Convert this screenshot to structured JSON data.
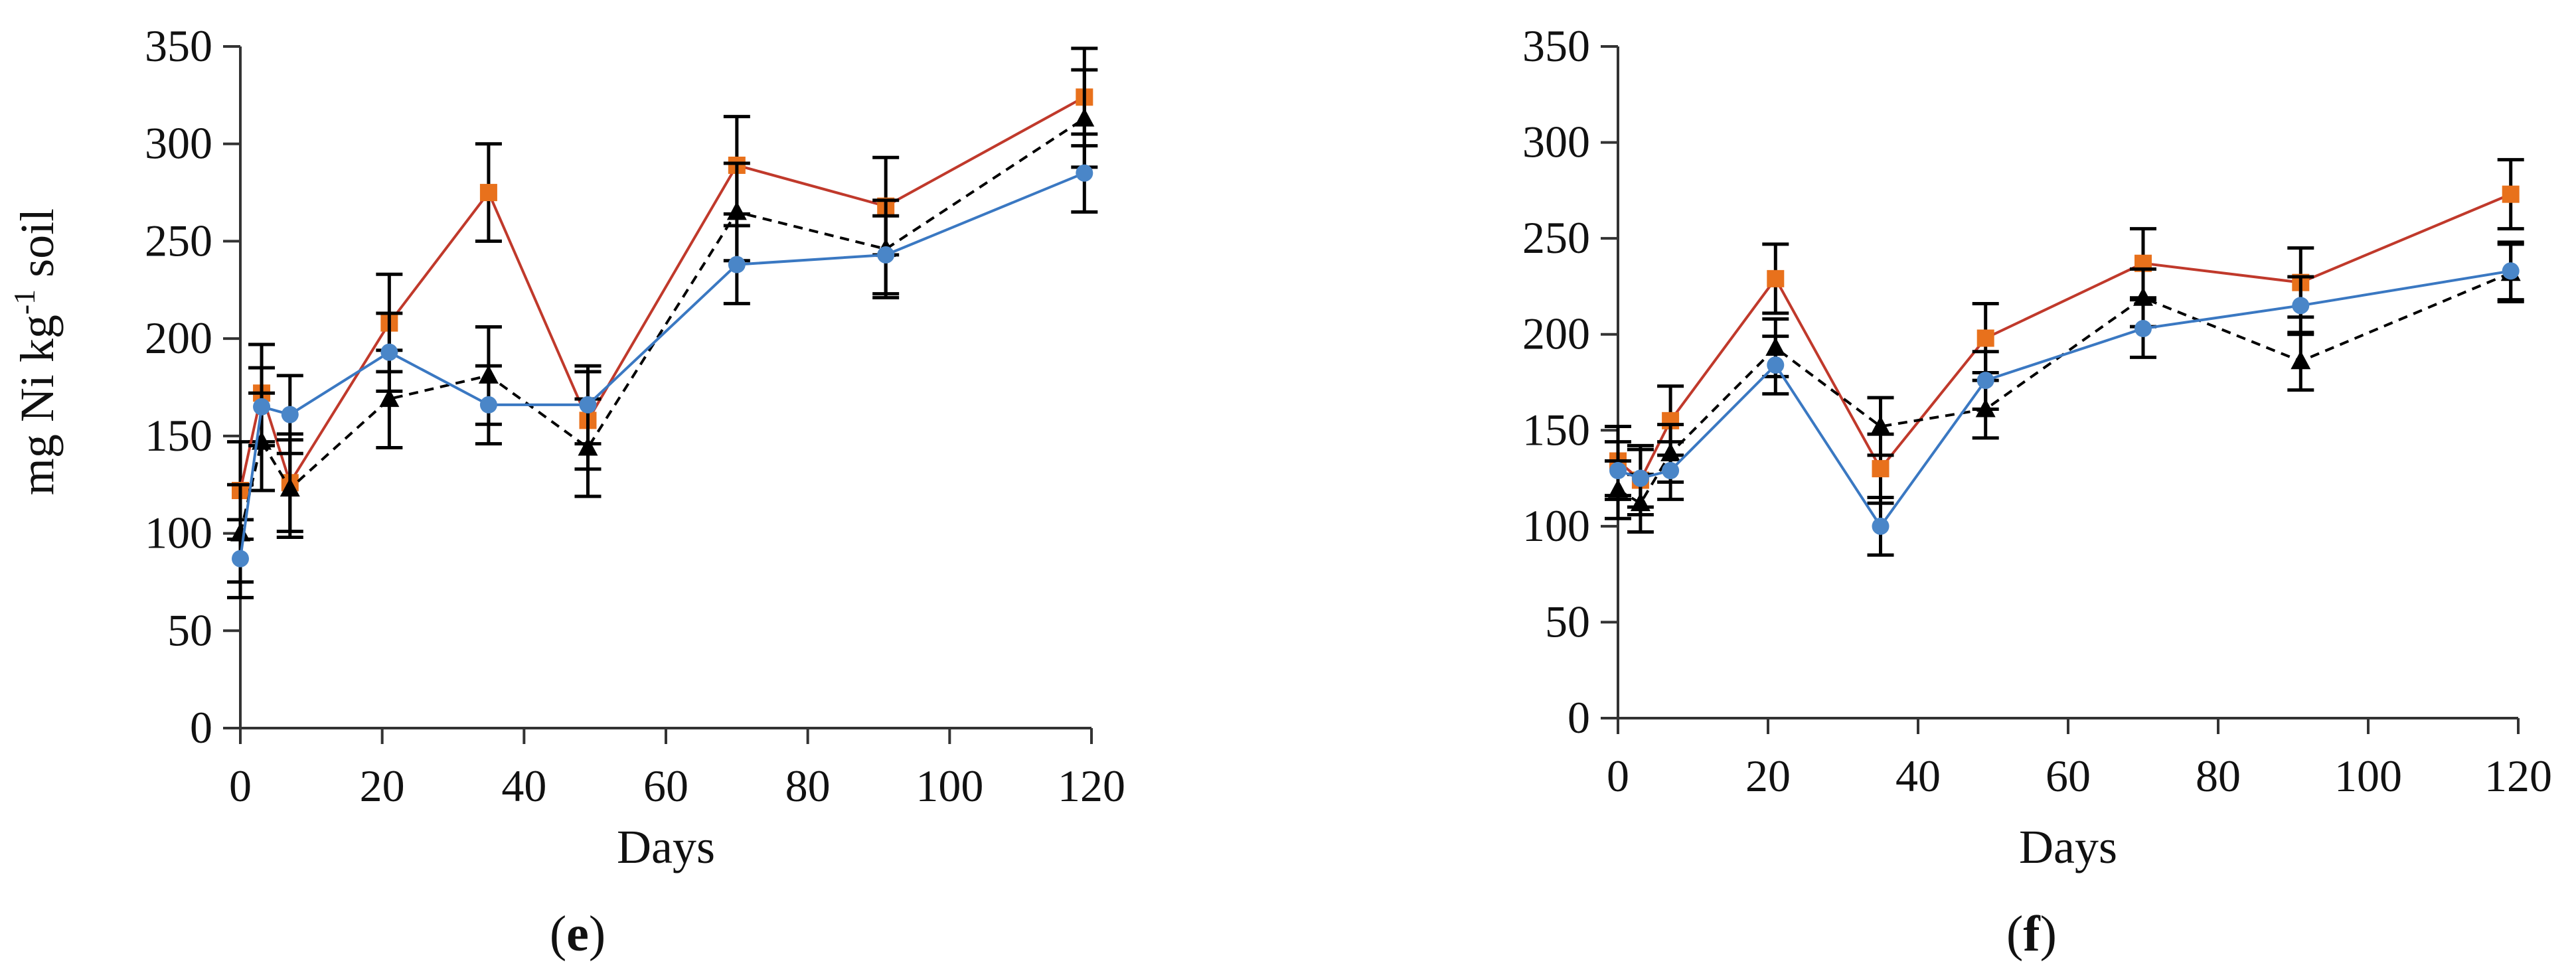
{
  "colors": {
    "series_red": "#c0392b",
    "marker_orange": "#e8711c",
    "series_blue": "#3a78c2",
    "marker_blue": "#4a86c8",
    "series_black": "#000000"
  },
  "chart_data": [
    {
      "type": "line",
      "panel": "e",
      "caption_open": "(",
      "caption_letter": "e",
      "caption_close": ")",
      "ylabel": "mg Ni kg-1 soil",
      "ylabel_parts": {
        "pre": "mg Ni kg",
        "sup": "-1",
        "post": " soil"
      },
      "xlabel": "Days",
      "xlim": [
        0,
        120
      ],
      "ylim": [
        0,
        350
      ],
      "xticks": [
        0,
        20,
        40,
        60,
        80,
        100,
        120
      ],
      "yticks": [
        0,
        50,
        100,
        150,
        200,
        250,
        300,
        350
      ],
      "x": [
        0,
        3,
        7,
        21,
        35,
        49,
        70,
        91,
        119
      ],
      "series": [
        {
          "name": "orange squares (red line)",
          "marker": "square",
          "style": "solid",
          "color": "#c0392b",
          "marker_color": "#e8711c",
          "values": [
            122,
            172,
            126,
            208,
            275,
            158,
            289,
            268,
            324
          ],
          "errors": [
            25,
            25,
            25,
            25,
            25,
            25,
            25,
            25,
            25
          ]
        },
        {
          "name": "black triangles (dashed line)",
          "marker": "triangle",
          "style": "dashed",
          "color": "#000000",
          "marker_color": "#000000",
          "values": [
            100,
            147,
            123,
            169,
            181,
            144,
            265,
            246,
            313
          ],
          "errors": [
            25,
            25,
            25,
            25,
            25,
            25,
            25,
            25,
            25
          ]
        },
        {
          "name": "blue circles (blue line)",
          "marker": "circle",
          "style": "solid",
          "color": "#3a78c2",
          "marker_color": "#4a86c8",
          "values": [
            87,
            165,
            161,
            193,
            166,
            166,
            238,
            243,
            285
          ],
          "errors": [
            20,
            20,
            20,
            20,
            20,
            20,
            20,
            20,
            20
          ]
        }
      ]
    },
    {
      "type": "line",
      "panel": "f",
      "caption_open": "(",
      "caption_letter": "f",
      "caption_close": ")",
      "ylabel": "",
      "xlabel": "Days",
      "xlim": [
        0,
        120
      ],
      "ylim": [
        0,
        350
      ],
      "xticks": [
        0,
        20,
        40,
        60,
        80,
        100,
        120
      ],
      "yticks": [
        0,
        50,
        100,
        150,
        200,
        250,
        300,
        350
      ],
      "x": [
        0,
        3,
        7,
        21,
        35,
        49,
        70,
        91,
        119
      ],
      "series": [
        {
          "name": "orange squares (red line)",
          "marker": "square",
          "style": "solid",
          "color": "#c0392b",
          "marker_color": "#e8711c",
          "values": [
            134,
            124,
            155,
            229,
            130,
            198,
            237,
            227,
            273
          ],
          "errors": [
            18,
            18,
            18,
            18,
            18,
            18,
            18,
            18,
            18
          ]
        },
        {
          "name": "black triangles (dashed line)",
          "marker": "triangle",
          "style": "dashed",
          "color": "#000000",
          "marker_color": "#000000",
          "values": [
            119,
            112,
            138,
            193,
            152,
            161,
            219,
            186,
            232
          ],
          "errors": [
            15,
            15,
            15,
            15,
            15,
            15,
            15,
            15,
            15
          ]
        },
        {
          "name": "blue circles (blue line)",
          "marker": "circle",
          "style": "solid",
          "color": "#3a78c2",
          "marker_color": "#4a86c8",
          "values": [
            129,
            125,
            129,
            184,
            100,
            176,
            203,
            215,
            233
          ],
          "errors": [
            15,
            15,
            15,
            15,
            15,
            15,
            15,
            15,
            15
          ]
        }
      ]
    }
  ]
}
